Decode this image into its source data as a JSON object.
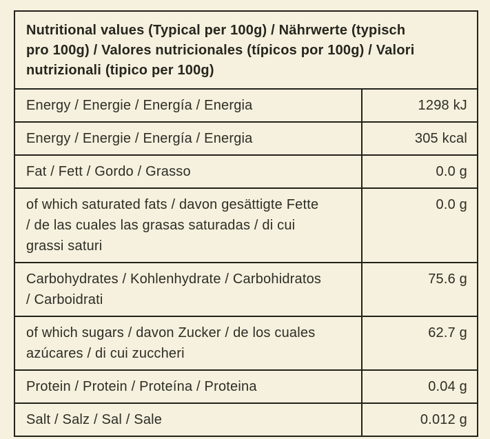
{
  "table": {
    "header": "Nutritional values (Typical per 100g) / Nährwerte (typisch pro 100g) / Valores nutricionales (típicos por 100g) / Valori nutrizionali (tipico per 100g)",
    "rows": [
      {
        "label": "Energy / Energie / Energía / Energia",
        "value": "1298 kJ"
      },
      {
        "label": "Energy / Energie / Energía / Energia",
        "value": "305 kcal"
      },
      {
        "label": "Fat / Fett / Gordo / Grasso",
        "value": "0.0 g"
      },
      {
        "label": "of which saturated fats / davon gesättigte Fette / de las cuales las grasas saturadas / di cui grassi saturi",
        "value": "0.0 g"
      },
      {
        "label": "Carbohydrates / Kohlenhydrate / Carbohidratos / Carboidrati",
        "value": "75.6 g"
      },
      {
        "label": "of which sugars / davon Zucker / de los cuales azúcares / di cui zuccheri",
        "value": "62.7 g"
      },
      {
        "label": "Protein / Protein / Proteína / Proteina",
        "value": "0.04 g"
      },
      {
        "label": "Salt / Salz / Sal / Sale",
        "value": "0.012 g"
      }
    ],
    "colors": {
      "background": "#f5f1de",
      "border": "#23221a",
      "text": "#2e2d25"
    }
  }
}
